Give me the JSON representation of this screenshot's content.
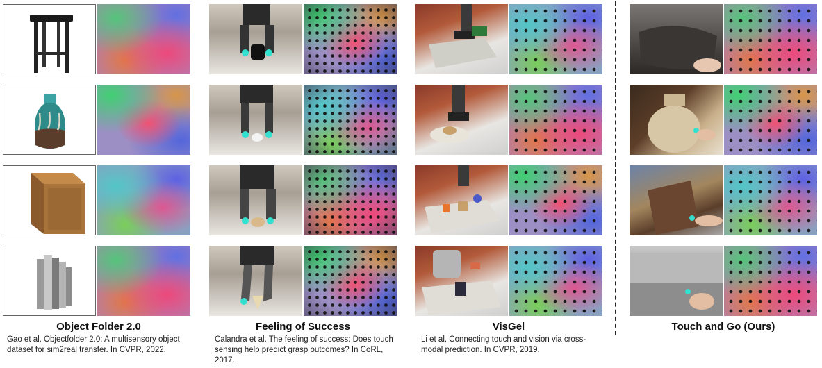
{
  "captions": [
    {
      "title": "Object Folder 2.0",
      "ref": "Gao et al. Objectfolder 2.0: A multisensory object dataset for sim2real transfer. In CVPR, 2022."
    },
    {
      "title": "Feeling of Success",
      "ref": "Calandra et al. The feeling of success: Does touch sensing help predict grasp outcomes? In CoRL, 2017."
    },
    {
      "title": "VisGel",
      "ref": "Li et al. Connecting touch and vision via cross-modal prediction. In CVPR, 2019."
    },
    {
      "title": "Touch and Go (Ours)",
      "ref": ""
    }
  ]
}
